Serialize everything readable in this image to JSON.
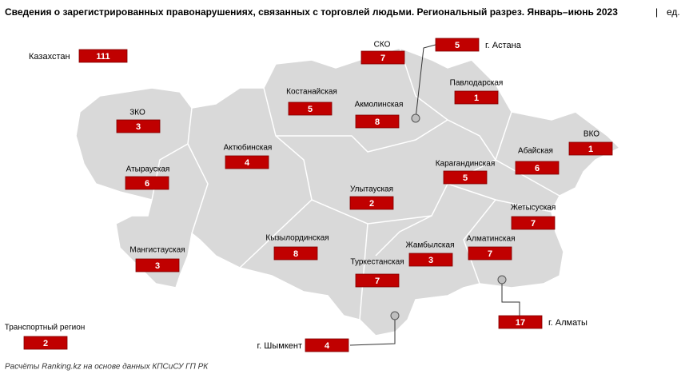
{
  "header": {
    "title": "Сведения о зарегистрированных правонарушениях, связанных с торговлей людьми. Региональный разрез. Январь–июнь 2023",
    "unit": "ед."
  },
  "total": {
    "name": "Казахстан",
    "value": 111
  },
  "regions": [
    {
      "name": "СКО",
      "value": 7
    },
    {
      "name": "Павлодарская",
      "value": 1
    },
    {
      "name": "Костанайская",
      "value": 5
    },
    {
      "name": "Акмолинская",
      "value": 8
    },
    {
      "name": "ЗКО",
      "value": 3
    },
    {
      "name": "ВКО",
      "value": 1
    },
    {
      "name": "Актюбинская",
      "value": 4
    },
    {
      "name": "Абайская",
      "value": 6
    },
    {
      "name": "Карагандинская",
      "value": 5
    },
    {
      "name": "Атырауская",
      "value": 6
    },
    {
      "name": "Улытауская",
      "value": 2
    },
    {
      "name": "Жетысуская",
      "value": 7
    },
    {
      "name": "Кызылординская",
      "value": 8
    },
    {
      "name": "Алматинская",
      "value": 7
    },
    {
      "name": "Жамбылская",
      "value": 3
    },
    {
      "name": "Мангистауская",
      "value": 3
    },
    {
      "name": "Туркестанская",
      "value": 7
    },
    {
      "name": "Транспортный регион",
      "value": 2
    }
  ],
  "cities": [
    {
      "name": "г. Астана",
      "value": 5
    },
    {
      "name": "г. Алматы",
      "value": 17
    },
    {
      "name": "г. Шымкент",
      "value": 4
    }
  ],
  "footer": {
    "source": "Расчёты Ranking.kz на основе данных КПСиСУ ГП РК"
  }
}
